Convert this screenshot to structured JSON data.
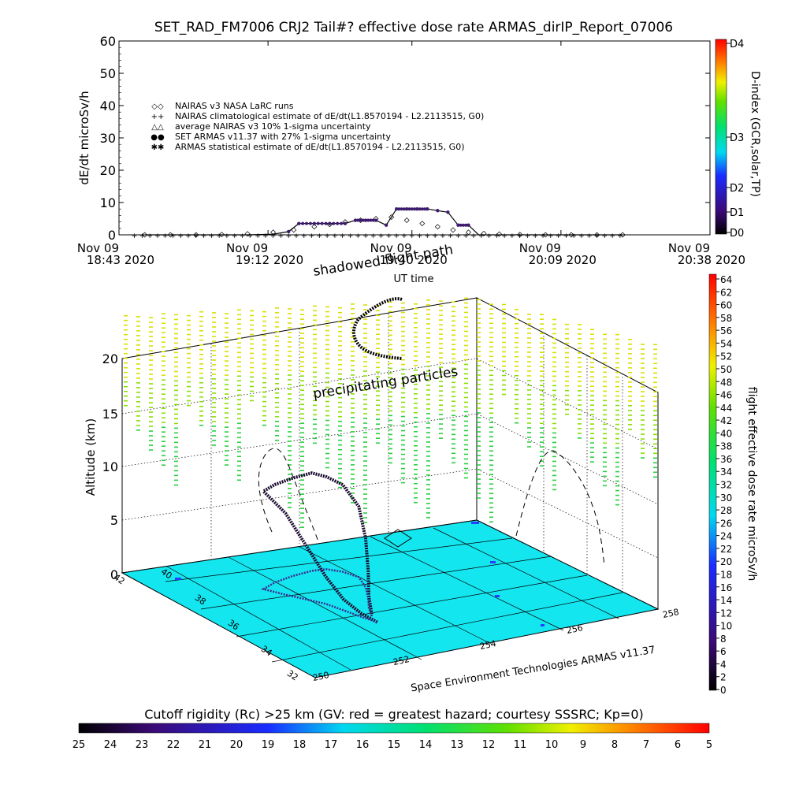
{
  "title": "SET_RAD_FM7006   CRJ2 Tail#? effective dose rate ARMAS_dirIP_Report_07006",
  "colors": {
    "ground": "#14e6f0",
    "nairas": "#000000",
    "armas": "#3c1a6e",
    "flight_track": "#1a0a2e"
  },
  "chart_data": [
    {
      "type": "line",
      "ylabel": "dE/dt microSv/h",
      "xlabel": "UT time",
      "ylim": [
        0,
        60
      ],
      "yticks": [
        "0",
        "10",
        "20",
        "30",
        "40",
        "50",
        "60"
      ],
      "xticks": [
        {
          "date": "Nov 09",
          "time": "18:43 2020"
        },
        {
          "date": "Nov 09",
          "time": "19:12 2020"
        },
        {
          "date": "Nov 09",
          "time": "19:40 2020"
        },
        {
          "date": "Nov 09",
          "time": "20:09 2020"
        },
        {
          "date": "Nov 09",
          "time": "20:38 2020"
        }
      ],
      "legend": [
        {
          "symbol": "◇◇",
          "label": "NAIRAS v3 NASA LaRC runs"
        },
        {
          "symbol": "++",
          "label": "NAIRAS climatological estimate of dE/dt(L1.8570194 - L2.2113515, G0)"
        },
        {
          "symbol": "△△",
          "label": "average NAIRAS v3 10% 1-sigma uncertainty"
        },
        {
          "symbol": "●●",
          "label": "SET ARMAS v11.37 with 27% 1-sigma uncertainty"
        },
        {
          "symbol": "✱✱",
          "label": "ARMAS statistical estimate of dE/dt(L1.8570194 - L2.2113515, G0)"
        }
      ],
      "legend_position": "upper-left",
      "time_minutes": [
        0,
        29,
        57,
        86,
        115
      ],
      "series": [
        {
          "name": "NAIRAS v3 NASA LaRC runs",
          "x_min": [
            5,
            10,
            15,
            20,
            25,
            30,
            34,
            38,
            41,
            44,
            47,
            50,
            53,
            56,
            59,
            62,
            65,
            68,
            71,
            74,
            78,
            83,
            88,
            93,
            98
          ],
          "y": [
            0,
            0,
            0,
            0.1,
            0.3,
            0.8,
            1.5,
            2.5,
            3.2,
            4.0,
            4.5,
            5.0,
            5.5,
            4.5,
            3.5,
            2.5,
            1.5,
            0.8,
            0.4,
            0.2,
            0.1,
            0,
            0,
            0,
            0
          ]
        },
        {
          "name": "SET ARMAS v11.37 with 27% 1-sigma uncertainty",
          "x_min": [
            5,
            10,
            15,
            20,
            25,
            30,
            33,
            35,
            38,
            41,
            44,
            46,
            48,
            50,
            52,
            54,
            56,
            58,
            60,
            62,
            64,
            66,
            68,
            70,
            72,
            74,
            78,
            83,
            88,
            93,
            98
          ],
          "y": [
            0,
            0,
            0,
            0,
            0,
            0.2,
            1,
            3.5,
            3.5,
            3.5,
            3.5,
            4.5,
            4.5,
            4.5,
            3.0,
            8.0,
            8.0,
            8.0,
            8.0,
            7.5,
            7.0,
            3.0,
            3.0,
            0,
            0,
            0,
            0,
            0,
            0,
            0,
            0
          ]
        }
      ],
      "dindex": {
        "label": "D-index (GCR,solar,TP)",
        "ticks": [
          "D0",
          "D1",
          "D2",
          "D3",
          "D4"
        ]
      }
    },
    {
      "type": "scatter",
      "title": "",
      "zlabel": "Altitude (km)",
      "zticks": [
        "0",
        "5",
        "10",
        "15",
        "20"
      ],
      "lat_ticks": [
        "32",
        "34",
        "36",
        "38",
        "40",
        "42"
      ],
      "lon_ticks": [
        "250",
        "252",
        "254",
        "256",
        "258"
      ],
      "annotations": [
        "shadowed flight path",
        "precipitating particles"
      ],
      "credit": "Space Environment Technologies ARMAS v11.37",
      "flight_track": [
        {
          "lon": 252.8,
          "lat": 35.0,
          "alt": 0
        },
        {
          "lon": 252.7,
          "lat": 35.6,
          "alt": 0.3
        },
        {
          "lon": 252.6,
          "lat": 36.3,
          "alt": 1.0
        },
        {
          "lon": 252.5,
          "lat": 37.0,
          "alt": 2.5
        },
        {
          "lon": 252.3,
          "lat": 37.6,
          "alt": 5.0
        },
        {
          "lon": 252.1,
          "lat": 38.2,
          "alt": 7.5
        },
        {
          "lon": 251.9,
          "lat": 38.9,
          "alt": 9.0
        },
        {
          "lon": 252.3,
          "lat": 39.2,
          "alt": 9.0
        },
        {
          "lon": 252.8,
          "lat": 39.4,
          "alt": 9.0
        },
        {
          "lon": 253.3,
          "lat": 39.5,
          "alt": 9.0
        },
        {
          "lon": 253.6,
          "lat": 39.4,
          "alt": 8.5
        },
        {
          "lon": 253.8,
          "lat": 39.0,
          "alt": 8.0
        },
        {
          "lon": 253.9,
          "lat": 38.4,
          "alt": 6.5
        },
        {
          "lon": 253.7,
          "lat": 37.6,
          "alt": 4.5
        },
        {
          "lon": 253.4,
          "lat": 36.8,
          "alt": 2.5
        },
        {
          "lon": 253.1,
          "lat": 36.1,
          "alt": 1.0
        },
        {
          "lon": 252.9,
          "lat": 35.5,
          "alt": 0.2
        }
      ],
      "rc_colorbar": {
        "label": "Cutoff rigidity (Rc) >25 km (GV: red = greatest hazard; courtesy SSSRC; Kp=0)",
        "ticks": [
          "25",
          "24",
          "23",
          "22",
          "21",
          "20",
          "19",
          "18",
          "17",
          "16",
          "15",
          "14",
          "13",
          "12",
          "11",
          "10",
          "9",
          "8",
          "7",
          "6",
          "5"
        ]
      },
      "dose_colorbar": {
        "label": "flight effective dose rate microSv/h",
        "ticks": [
          "0",
          "2",
          "4",
          "6",
          "8",
          "10",
          "12",
          "14",
          "16",
          "18",
          "20",
          "22",
          "24",
          "26",
          "28",
          "30",
          "32",
          "34",
          "36",
          "38",
          "40",
          "42",
          "44",
          "46",
          "48",
          "50",
          "52",
          "54",
          "56",
          "58",
          "60",
          "62",
          "64"
        ]
      }
    }
  ]
}
